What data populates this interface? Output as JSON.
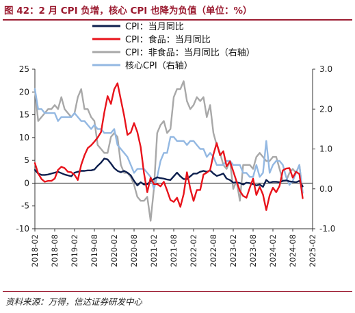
{
  "figure": {
    "title": "图 42：2 月 CPI 负增，核心 CPI 也降为负值（单位：%）",
    "source": "资料来源：万得，信达证券研发中心"
  },
  "chart_data": {
    "type": "line",
    "x_ticks": [
      "2018-02",
      "2018-08",
      "2019-02",
      "2019-08",
      "2020-02",
      "2020-08",
      "2021-02",
      "2021-08",
      "2022-02",
      "2022-08",
      "2023-02",
      "2023-08",
      "2024-02",
      "2024-08",
      "2025-02"
    ],
    "y_left": {
      "range": [
        -10,
        25
      ],
      "ticks": [
        "-10",
        "-5",
        "0",
        "5",
        "10",
        "15",
        "20",
        "25"
      ]
    },
    "y_right": {
      "range": [
        -1.0,
        3.0
      ],
      "ticks": [
        "-1.0",
        "0.0",
        "1.0",
        "2.0",
        "3.0"
      ]
    },
    "grid": false,
    "legend_position": "top-center",
    "series": [
      {
        "name": "CPI：当月同比",
        "color": "#0d1f4e",
        "axis": "left",
        "values": [
          2.9,
          2.1,
          1.8,
          1.8,
          1.9,
          2.1,
          2.3,
          2.5,
          2.2,
          1.9,
          1.7,
          1.5,
          2.3,
          2.5,
          2.7,
          2.7,
          2.8,
          2.8,
          3.0,
          3.8,
          4.5,
          5.4,
          5.2,
          4.3,
          3.3,
          2.7,
          2.4,
          2.7,
          2.3,
          1.7,
          0.5,
          -0.5,
          0.2,
          -0.3,
          -0.2,
          0.4,
          0.9,
          1.3,
          1.1,
          1.0,
          0.8,
          0.7,
          1.5,
          2.3,
          1.5,
          0.9,
          0.9,
          1.5,
          2.1,
          2.1,
          2.5,
          2.7,
          2.5,
          2.8,
          2.1,
          1.6,
          1.8,
          2.1,
          1.0,
          0.7,
          0.1,
          0.2,
          0.0,
          -0.3,
          0.1,
          0.0,
          -0.2,
          -0.5,
          -0.3,
          -0.8,
          0.7,
          0.1,
          0.3,
          0.3,
          0.2,
          0.5,
          0.6,
          0.4,
          0.3,
          0.2,
          0.5,
          -0.7
        ]
      },
      {
        "name": "CPI：食品：当月同比",
        "color": "#e8131b",
        "axis": "left",
        "values": [
          4.4,
          2.1,
          0.9,
          0.3,
          0.5,
          0.5,
          1.0,
          2.9,
          3.6,
          3.3,
          2.5,
          2.4,
          1.8,
          0.7,
          4.0,
          6.1,
          7.7,
          8.3,
          9.1,
          10.0,
          11.2,
          15.5,
          19.1,
          17.4,
          20.6,
          21.9,
          18.3,
          14.8,
          10.6,
          11.1,
          13.2,
          11.2,
          7.9,
          2.2,
          -2.0,
          1.2,
          -0.2,
          -0.2,
          -0.7,
          0.3,
          -1.6,
          -3.7,
          -4.1,
          -3.2,
          -5.2,
          -2.4,
          2.4,
          -1.2,
          -3.9,
          -1.5,
          -1.5,
          1.9,
          2.3,
          2.9,
          6.3,
          8.8,
          6.1,
          7.0,
          3.7,
          4.8,
          2.6,
          0.4,
          -1.7,
          -2.8,
          -3.2,
          -1.0,
          1.0,
          -2.6,
          -0.8,
          -2.5,
          -5.9,
          -2.7,
          -1.0,
          -2.0,
          -0.6,
          2.8,
          3.2,
          3.3,
          1.2,
          2.5,
          2.0,
          -3.3
        ]
      },
      {
        "name": "CPI：非食品：当月同比（右轴）",
        "color": "#a8a8a8",
        "axis": "right",
        "values": [
          2.5,
          1.7,
          1.8,
          1.9,
          2.0,
          2.0,
          2.1,
          2.0,
          2.3,
          2.0,
          1.9,
          1.8,
          1.9,
          2.3,
          2.5,
          2.0,
          2.0,
          1.8,
          1.7,
          1.1,
          1.0,
          0.9,
          0.9,
          1.3,
          1.4,
          1.3,
          0.6,
          0.4,
          0.4,
          0.3,
          0.1,
          -0.2,
          -0.3,
          -0.3,
          -0.2,
          -0.8,
          0.0,
          1.4,
          1.6,
          1.7,
          1.4,
          1.5,
          2.3,
          2.5,
          2.5,
          2.7,
          2.2,
          2.0,
          2.1,
          2.3,
          2.2,
          2.3,
          1.8,
          2.1,
          1.4,
          1.1,
          0.9,
          0.6,
          0.5,
          0.7,
          0.0,
          0.2,
          -0.3,
          0.6,
          0.6,
          0.6,
          0.5,
          0.8,
          0.9,
          0.8,
          0.7,
          0.7,
          0.8,
          0.8,
          0.5,
          0.2,
          0.2,
          0.4,
          0.5,
          0.4,
          0.6,
          -0.1
        ]
      },
      {
        "name": "核心CPI（右轴）",
        "color": "#93b8e2",
        "axis": "right",
        "values": [
          2.5,
          2.0,
          2.0,
          1.9,
          1.9,
          1.9,
          1.9,
          1.7,
          1.8,
          1.8,
          1.8,
          1.8,
          1.9,
          1.8,
          1.7,
          1.7,
          1.6,
          1.5,
          1.6,
          1.5,
          1.5,
          1.4,
          1.4,
          1.4,
          1.5,
          1.1,
          1.0,
          0.9,
          0.8,
          0.6,
          0.4,
          0.5,
          0.5,
          0.5,
          0.4,
          0.3,
          0.0,
          0.3,
          0.7,
          0.9,
          0.9,
          1.3,
          1.3,
          1.2,
          1.2,
          1.2,
          1.1,
          1.2,
          1.2,
          1.1,
          1.0,
          1.0,
          0.8,
          0.9,
          0.8,
          0.6,
          0.6,
          0.6,
          0.7,
          0.7,
          0.6,
          0.6,
          0.6,
          0.4,
          0.4,
          0.3,
          0.3,
          0.6,
          0.3,
          0.4,
          1.2,
          0.4,
          0.6,
          0.7,
          0.7,
          0.6,
          0.3,
          0.1,
          0.2,
          0.4,
          0.6,
          -0.1
        ]
      }
    ]
  }
}
